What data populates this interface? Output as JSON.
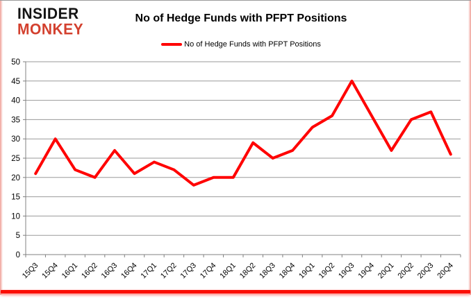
{
  "brand": {
    "line1": "INSIDER",
    "line2": "MONKEY",
    "line1_color": "#141414",
    "line2_color": "#d3402e"
  },
  "header": {
    "title": "No of Hedge Funds with PFPT Positions"
  },
  "legend": {
    "label": "No of Hedge Funds with PFPT Positions",
    "swatch_color": "#ff0000"
  },
  "chart_data": {
    "type": "line",
    "title": "No of Hedge Funds with PFPT Positions",
    "categories": [
      "15Q3",
      "15Q4",
      "16Q1",
      "16Q2",
      "16Q3",
      "16Q4",
      "17Q1",
      "17Q2",
      "17Q3",
      "17Q4",
      "18Q1",
      "18Q2",
      "18Q3",
      "18Q4",
      "19Q1",
      "19Q2",
      "19Q3",
      "19Q4",
      "20Q1",
      "20Q2",
      "20Q3",
      "20Q4"
    ],
    "series": [
      {
        "name": "No of Hedge Funds with PFPT Positions",
        "color": "#ff0000",
        "values": [
          21,
          30,
          22,
          20,
          27,
          21,
          24,
          22,
          18,
          20,
          20,
          29,
          25,
          27,
          33,
          36,
          45,
          36,
          27,
          35,
          37,
          26
        ]
      }
    ],
    "xlabel": "",
    "ylabel": "",
    "ylim": [
      0,
      50
    ],
    "ytick_step": 5,
    "yticks": [
      0,
      5,
      10,
      15,
      20,
      25,
      30,
      35,
      40,
      45,
      50
    ],
    "grid": true,
    "legend_position": "top",
    "gridline_color": "#9a9a9a",
    "axis_color": "#808080",
    "tick_label_color": "#000000"
  }
}
